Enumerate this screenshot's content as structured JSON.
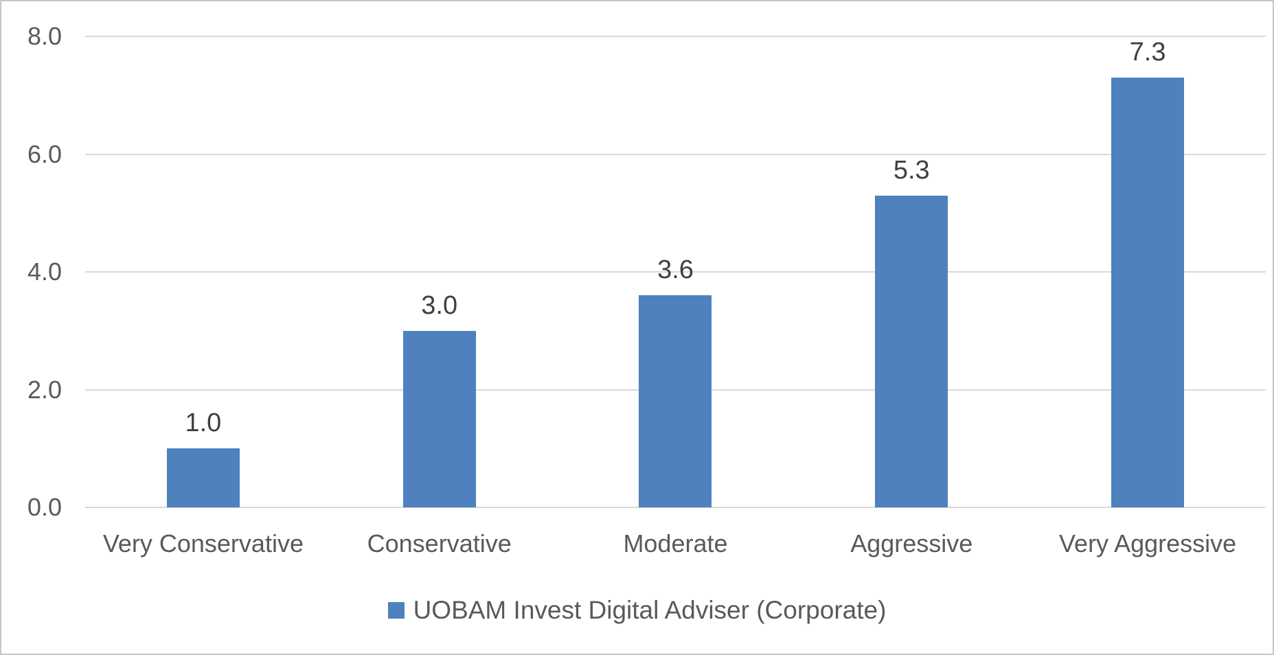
{
  "chart_data": {
    "type": "bar",
    "categories": [
      "Very Conservative",
      "Conservative",
      "Moderate",
      "Aggressive",
      "Very Aggressive"
    ],
    "series": [
      {
        "name": "UOBAM Invest Digital Adviser (Corporate)",
        "values": [
          1.0,
          3.0,
          3.6,
          5.3,
          7.3
        ]
      }
    ],
    "data_labels": [
      "1.0",
      "3.0",
      "3.6",
      "5.3",
      "7.3"
    ],
    "y_ticks": [
      "0.0",
      "2.0",
      "4.0",
      "6.0",
      "8.0"
    ],
    "ylim": [
      0,
      8
    ],
    "grid": true,
    "legend_position": "bottom",
    "colors": {
      "bar": "#4E81BD",
      "gridline": "#D9D9D9",
      "axis_text": "#595959",
      "value_text": "#3F3F3F",
      "frame_border": "#C6C6C6",
      "background": "#FFFFFF"
    }
  }
}
